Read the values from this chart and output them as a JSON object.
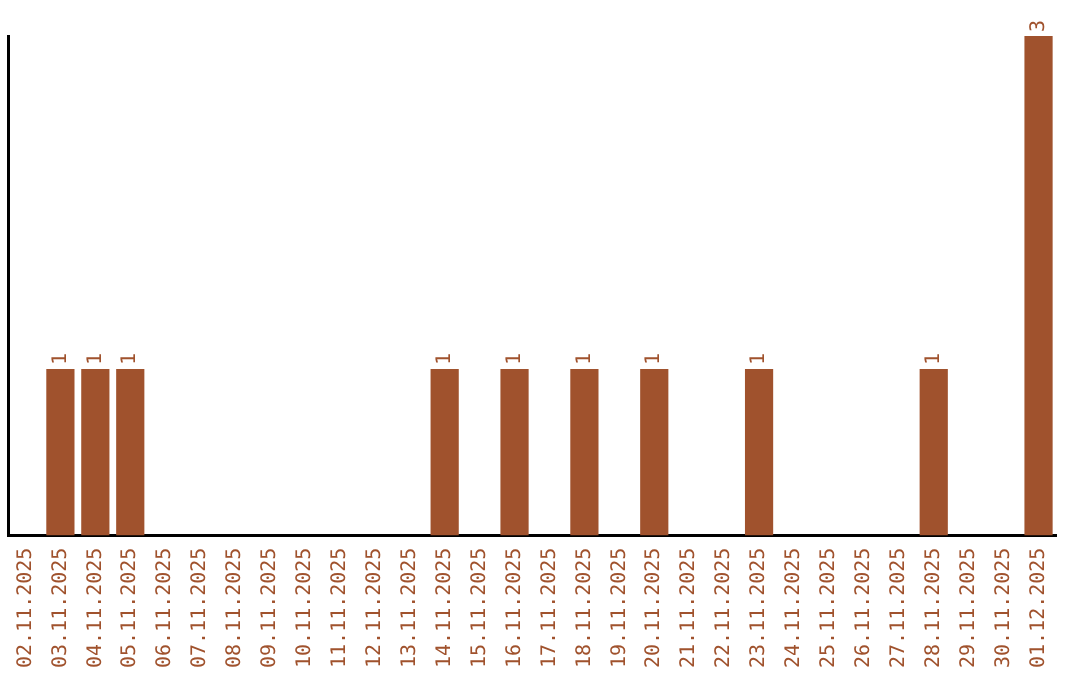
{
  "chart_data": {
    "type": "bar",
    "categories": [
      "02.11.2025",
      "03.11.2025",
      "04.11.2025",
      "05.11.2025",
      "06.11.2025",
      "07.11.2025",
      "08.11.2025",
      "09.11.2025",
      "10.11.2025",
      "11.11.2025",
      "12.11.2025",
      "13.11.2025",
      "14.11.2025",
      "15.11.2025",
      "16.11.2025",
      "17.11.2025",
      "18.11.2025",
      "19.11.2025",
      "20.11.2025",
      "21.11.2025",
      "22.11.2025",
      "23.11.2025",
      "24.11.2025",
      "25.11.2025",
      "26.11.2025",
      "27.11.2025",
      "28.11.2025",
      "29.11.2025",
      "30.11.2025",
      "01.12.2025"
    ],
    "values": [
      0,
      1,
      1,
      1,
      0,
      0,
      0,
      0,
      0,
      0,
      0,
      0,
      1,
      0,
      1,
      0,
      1,
      0,
      1,
      0,
      0,
      1,
      0,
      0,
      0,
      0,
      1,
      0,
      0,
      3
    ],
    "value_labels": [
      null,
      "1",
      "1",
      "1",
      null,
      null,
      null,
      null,
      null,
      null,
      null,
      null,
      "1",
      null,
      "1",
      null,
      "1",
      null,
      "1",
      null,
      null,
      "1",
      null,
      null,
      null,
      null,
      "1",
      null,
      null,
      "3"
    ],
    "color": "#a0522d",
    "grid": false,
    "legend": false,
    "tick_labels": "x"
  }
}
